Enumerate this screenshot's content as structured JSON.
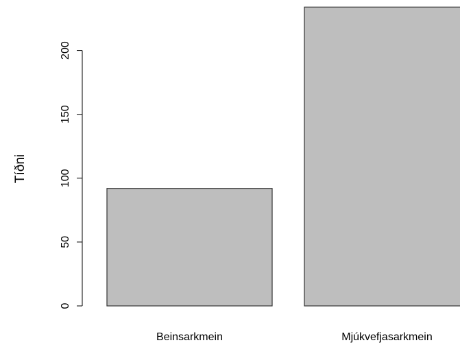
{
  "chart_data": {
    "type": "bar",
    "title": "",
    "xlabel": "",
    "ylabel": "Tíðni",
    "categories": [
      "Beinsarkmein",
      "Mjúkvefjasarkmein"
    ],
    "values": [
      92,
      234
    ],
    "ylim": [
      0,
      234
    ],
    "yticks": [
      0,
      50,
      100,
      150,
      200
    ],
    "grid": false,
    "legend": "none",
    "bar_color": "#bebebe",
    "bar_border_color": "#333333"
  }
}
